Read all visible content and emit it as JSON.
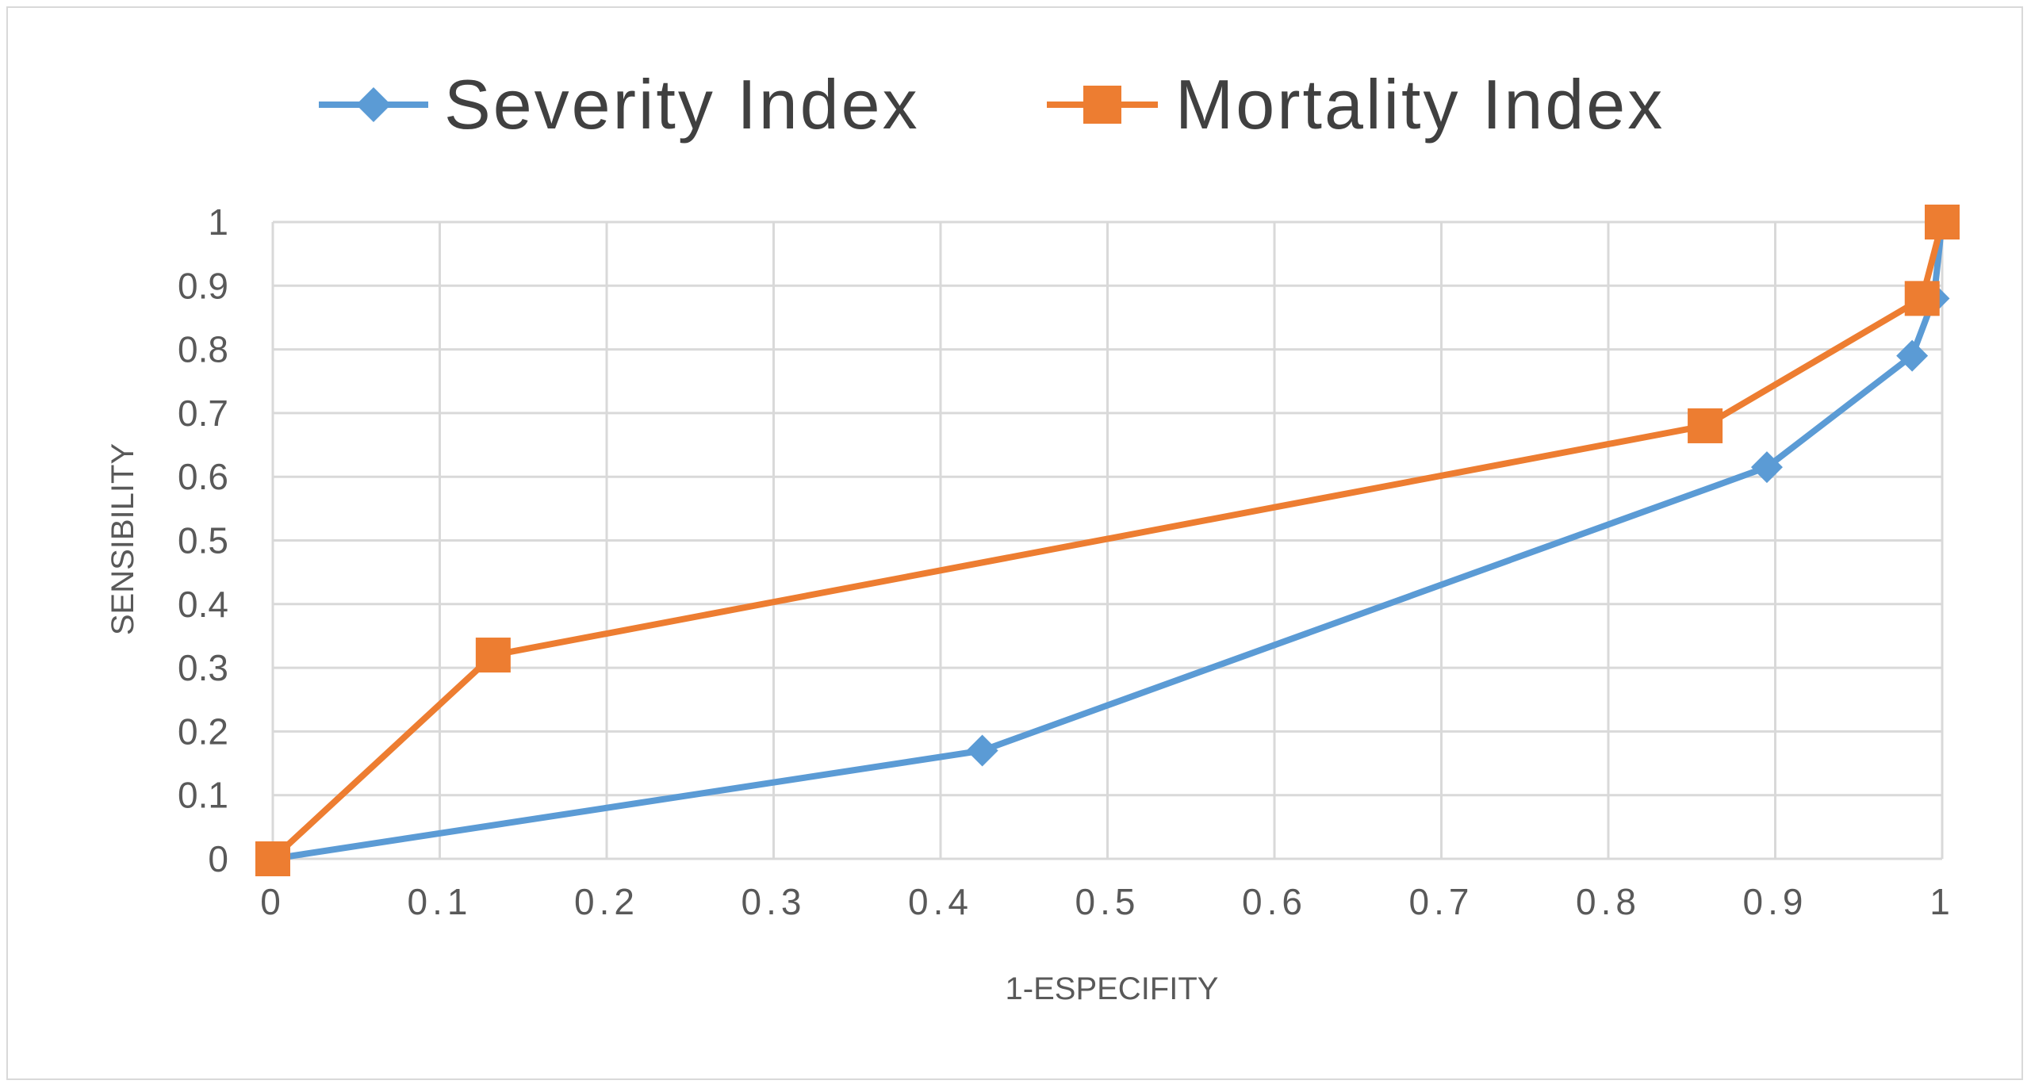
{
  "chart_data": {
    "type": "line",
    "title": "",
    "xlabel": "1-ESPECIFITY",
    "ylabel": "SENSIBILITY",
    "xlim": [
      0,
      1
    ],
    "ylim": [
      0,
      1
    ],
    "grid": true,
    "legend_position": "top",
    "x_ticks": [
      "0",
      "0.1",
      "0.2",
      "0.3",
      "0.4",
      "0.5",
      "0.6",
      "0.7",
      "0.8",
      "0.9",
      "1"
    ],
    "x_tick_values": [
      0,
      0.1,
      0.2,
      0.3,
      0.4,
      0.5,
      0.6,
      0.7,
      0.8,
      0.9,
      1
    ],
    "y_ticks": [
      "0",
      "0.1",
      "0.2",
      "0.3",
      "0.4",
      "0.5",
      "0.6",
      "0.7",
      "0.8",
      "0.9",
      "1"
    ],
    "y_tick_values": [
      0,
      0.1,
      0.2,
      0.3,
      0.4,
      0.5,
      0.6,
      0.7,
      0.8,
      0.9,
      1
    ],
    "series": [
      {
        "name": "Severity Index",
        "color": "#5b9bd5",
        "marker": "diamond",
        "x": [
          0,
          0.425,
          0.895,
          0.982,
          0.995,
          1.0
        ],
        "y": [
          0,
          0.17,
          0.615,
          0.79,
          0.88,
          1.0
        ]
      },
      {
        "name": "Mortality Index",
        "color": "#ed7d31",
        "marker": "square",
        "x": [
          0,
          0.132,
          0.858,
          0.988,
          1.0
        ],
        "y": [
          0,
          0.32,
          0.68,
          0.88,
          1.0
        ]
      }
    ]
  }
}
